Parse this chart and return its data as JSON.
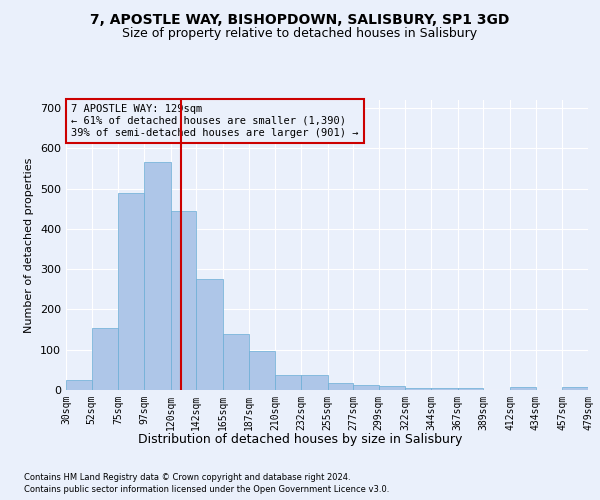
{
  "title_line1": "7, APOSTLE WAY, BISHOPDOWN, SALISBURY, SP1 3GD",
  "title_line2": "Size of property relative to detached houses in Salisbury",
  "xlabel": "Distribution of detached houses by size in Salisbury",
  "ylabel": "Number of detached properties",
  "footer_line1": "Contains HM Land Registry data © Crown copyright and database right 2024.",
  "footer_line2": "Contains public sector information licensed under the Open Government Licence v3.0.",
  "annotation_line1": "7 APOSTLE WAY: 129sqm",
  "annotation_line2": "← 61% of detached houses are smaller (1,390)",
  "annotation_line3": "39% of semi-detached houses are larger (901) →",
  "bin_edges": [
    30,
    52,
    75,
    97,
    120,
    142,
    165,
    187,
    210,
    232,
    255,
    277,
    299,
    322,
    344,
    367,
    389,
    412,
    434,
    457,
    479
  ],
  "bar_heights": [
    25,
    155,
    490,
    565,
    445,
    275,
    140,
    97,
    38,
    37,
    17,
    13,
    10,
    6,
    5,
    4,
    0,
    7,
    0,
    7
  ],
  "bar_color": "#aec6e8",
  "bar_edge_color": "#6aaed6",
  "vline_x": 129,
  "vline_color": "#cc0000",
  "annotation_box_color": "#cc0000",
  "background_color": "#eaf0fb",
  "grid_color": "#ffffff",
  "ylim": [
    0,
    720
  ],
  "yticks": [
    0,
    100,
    200,
    300,
    400,
    500,
    600,
    700
  ],
  "title_fontsize": 10,
  "subtitle_fontsize": 9,
  "ylabel_fontsize": 8,
  "xlabel_fontsize": 9,
  "tick_fontsize": 7,
  "ann_fontsize": 7.5,
  "footer_fontsize": 6
}
